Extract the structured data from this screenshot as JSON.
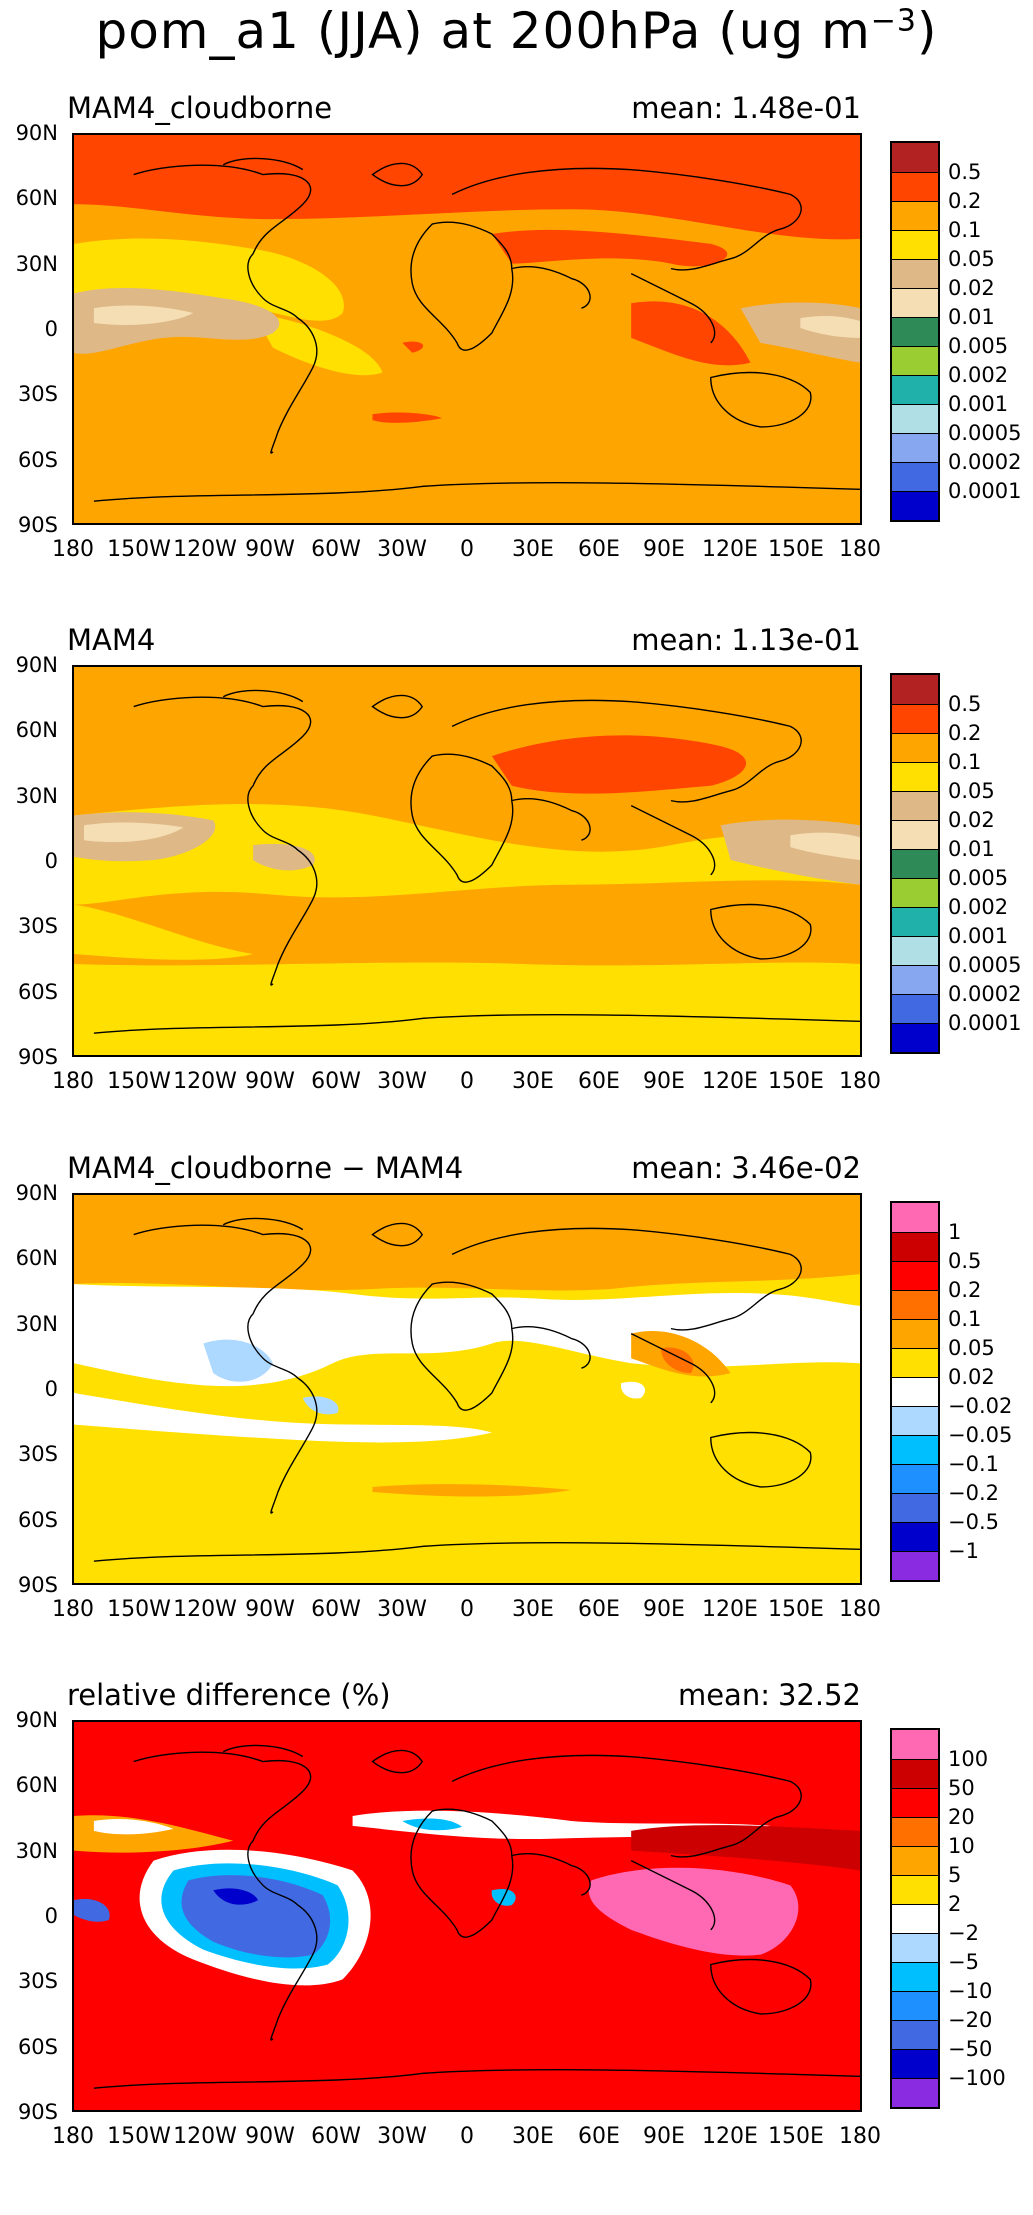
{
  "title": {
    "main": "pom_a1 (JJA) at 200hPa (ug m",
    "exp": "−3",
    "close": ")"
  },
  "axes": {
    "lat_labels": [
      "90N",
      "60N",
      "30N",
      "0",
      "30S",
      "60S",
      "90S"
    ],
    "lon_labels": [
      "180",
      "150W",
      "120W",
      "90W",
      "60W",
      "30W",
      "0",
      "30E",
      "60E",
      "90E",
      "120E",
      "150E",
      "180"
    ]
  },
  "panels": [
    {
      "title": "MAM4_cloudborne",
      "mean_label": "mean:",
      "mean_value": "1.48e-01",
      "colorbar": {
        "labels": [
          "0.5",
          "0.2",
          "0.1",
          "0.05",
          "0.02",
          "0.01",
          "0.005",
          "0.002",
          "0.001",
          "0.0005",
          "0.0002",
          "0.0001"
        ],
        "colors": [
          "#b22222",
          "#ff4500",
          "#ffa500",
          "#ffe000",
          "#deb887",
          "#f5deb3",
          "#2e8b57",
          "#9acd32",
          "#20b2aa",
          "#b0e0e6",
          "#87a8f0",
          "#4169e1",
          "#0000cd"
        ]
      }
    },
    {
      "title": "MAM4",
      "mean_label": "mean:",
      "mean_value": "1.13e-01",
      "colorbar": {
        "labels": [
          "0.5",
          "0.2",
          "0.1",
          "0.05",
          "0.02",
          "0.01",
          "0.005",
          "0.002",
          "0.001",
          "0.0005",
          "0.0002",
          "0.0001"
        ],
        "colors": [
          "#b22222",
          "#ff4500",
          "#ffa500",
          "#ffe000",
          "#deb887",
          "#f5deb3",
          "#2e8b57",
          "#9acd32",
          "#20b2aa",
          "#b0e0e6",
          "#87a8f0",
          "#4169e1",
          "#0000cd"
        ]
      }
    },
    {
      "title": "MAM4_cloudborne − MAM4",
      "mean_label": "mean:",
      "mean_value": "3.46e-02",
      "colorbar": {
        "labels": [
          "1",
          "0.5",
          "0.2",
          "0.1",
          "0.05",
          "0.02",
          "−0.02",
          "−0.05",
          "−0.1",
          "−0.2",
          "−0.5",
          "−1"
        ],
        "colors": [
          "#ff69b4",
          "#cc0000",
          "#ff0000",
          "#ff7000",
          "#ffa500",
          "#ffe000",
          "#ffffff",
          "#add8ff",
          "#00bfff",
          "#1e90ff",
          "#4169e1",
          "#0000cd",
          "#8a2be2"
        ]
      }
    },
    {
      "title": "relative difference (%)",
      "mean_label": "mean:",
      "mean_value": "32.52",
      "colorbar": {
        "labels": [
          "100",
          "50",
          "20",
          "10",
          "5",
          "2",
          "−2",
          "−5",
          "−10",
          "−20",
          "−50",
          "−100"
        ],
        "colors": [
          "#ff69b4",
          "#cc0000",
          "#ff0000",
          "#ff7000",
          "#ffa500",
          "#ffe000",
          "#ffffff",
          "#add8ff",
          "#00bfff",
          "#1e90ff",
          "#4169e1",
          "#0000cd",
          "#8a2be2"
        ]
      }
    }
  ]
}
